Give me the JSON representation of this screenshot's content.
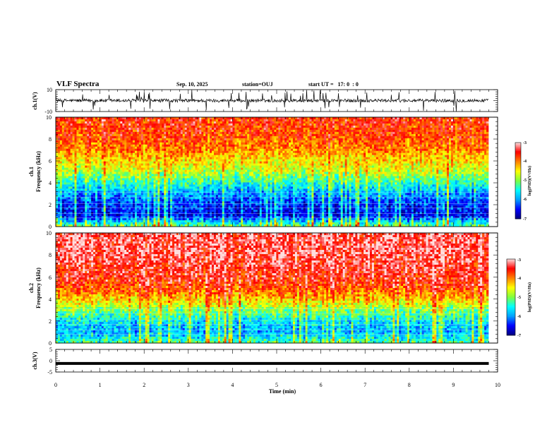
{
  "header": {
    "title": "VLF Spectra",
    "date": "Sep. 10, 2025",
    "station": "station=OUJ",
    "start": "start UT =   17: 0  : 0"
  },
  "colors": {
    "colormap": [
      "#00007f",
      "#0000ff",
      "#00a0ff",
      "#00ffff",
      "#7fff3f",
      "#ffff00",
      "#ff8000",
      "#ff0000",
      "#ffe0e0"
    ]
  },
  "chart_data": [
    {
      "type": "line",
      "panel": "ch1-waveform",
      "ylabel": "ch.1(V)",
      "ylim": [
        -10,
        10
      ],
      "yticks": [
        "10",
        "-10"
      ],
      "x": [
        0,
        10
      ],
      "baseline": 0,
      "note_series": "noisy waveform near 0 V with spikes"
    },
    {
      "type": "heatmap",
      "panel": "ch1-spectrogram",
      "ylabel": "ch.1\nFrequency (kHz)",
      "ylim": [
        0,
        10
      ],
      "yticks": [
        "0",
        "2",
        "4",
        "6",
        "8",
        "10"
      ],
      "colorbar": {
        "label": "log(PSD)(V²/Hz)",
        "range": [
          -7,
          -3
        ],
        "ticks": [
          "-3",
          "-4",
          "-5",
          "-6",
          "-7"
        ]
      },
      "profile_freq_khz": [
        0,
        1,
        2,
        3,
        4,
        5,
        6,
        7,
        8,
        9,
        10
      ],
      "profile_log_psd": [
        -5.0,
        -6.6,
        -6.4,
        -6.0,
        -5.4,
        -4.8,
        -4.4,
        -4.0,
        -3.8,
        -3.7,
        -3.6
      ]
    },
    {
      "type": "heatmap",
      "panel": "ch2-spectrogram",
      "ylabel": "ch.2\nFrequency (kHz)",
      "ylim": [
        0,
        10
      ],
      "yticks": [
        "0",
        "2",
        "4",
        "6",
        "8",
        "10"
      ],
      "colorbar": {
        "label": "log(PSD)(V²/Hz)",
        "range": [
          -7,
          -3
        ],
        "ticks": [
          "-3",
          "-4",
          "-5",
          "-6",
          "-7"
        ]
      },
      "profile_freq_khz": [
        0,
        1,
        2,
        3,
        4,
        5,
        6,
        7,
        8,
        9,
        10
      ],
      "profile_log_psd": [
        -5.2,
        -5.9,
        -5.6,
        -5.0,
        -4.3,
        -3.8,
        -3.5,
        -3.4,
        -3.3,
        -3.3,
        -3.3
      ]
    },
    {
      "type": "line",
      "panel": "ch3-waveform",
      "ylabel": "ch.3(V)",
      "ylim": [
        -5,
        5
      ],
      "yticks": [
        "5",
        "0",
        "-5"
      ],
      "x": [
        0,
        9.8
      ],
      "y": [
        -1.2,
        -1.2
      ]
    }
  ],
  "xaxis": {
    "label": "Time (min)",
    "ticks": [
      "0",
      "1",
      "2",
      "3",
      "4",
      "5",
      "6",
      "7",
      "8",
      "9",
      "10"
    ],
    "xlim": [
      0,
      10
    ],
    "data_end": 9.8
  }
}
